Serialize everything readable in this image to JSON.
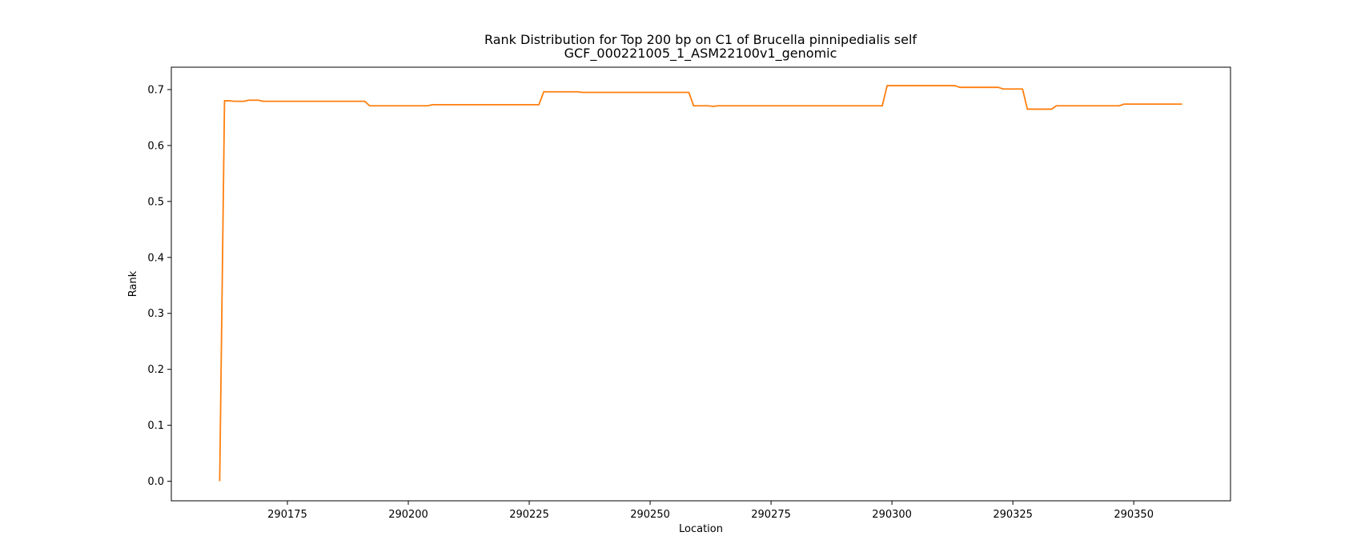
{
  "chart_data": {
    "type": "line",
    "title": "Rank Distribution for Top 200 bp on C1 of Brucella pinnipedialis self",
    "subtitle": "GCF_000221005_1_ASM22100v1_genomic",
    "xlabel": "Location",
    "ylabel": "Rank",
    "xlim": [
      290151,
      290370
    ],
    "ylim": [
      -0.035,
      0.74
    ],
    "xticks": [
      290175,
      290200,
      290225,
      290250,
      290275,
      290300,
      290325,
      290350
    ],
    "yticks": [
      0.0,
      0.1,
      0.2,
      0.3,
      0.4,
      0.5,
      0.6,
      0.7
    ],
    "ytick_labels": [
      "0.0",
      "0.1",
      "0.2",
      "0.3",
      "0.4",
      "0.5",
      "0.6",
      "0.7"
    ],
    "grid": false,
    "series": [
      {
        "color": "#ff7f0e",
        "x": [
          290161,
          290162,
          290163,
          290164,
          290166,
          290167,
          290169,
          290170,
          290191,
          290192,
          290204,
          290205,
          290227,
          290228,
          290235,
          290236,
          290258,
          290259,
          290262,
          290263,
          290264,
          290298,
          290299,
          290313,
          290314,
          290322,
          290323,
          290327,
          290328,
          290333,
          290334,
          290347,
          290348,
          290360
        ],
        "y": [
          0.0,
          0.68,
          0.68,
          0.679,
          0.679,
          0.681,
          0.681,
          0.679,
          0.679,
          0.671,
          0.671,
          0.673,
          0.673,
          0.696,
          0.696,
          0.695,
          0.695,
          0.671,
          0.671,
          0.67,
          0.671,
          0.671,
          0.707,
          0.707,
          0.704,
          0.704,
          0.701,
          0.701,
          0.665,
          0.665,
          0.671,
          0.671,
          0.674,
          0.674
        ]
      }
    ]
  }
}
